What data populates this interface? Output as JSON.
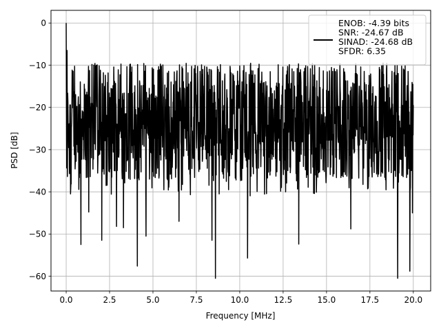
{
  "chart_data": {
    "type": "line",
    "xlabel": "Frequency [MHz]",
    "ylabel": "PSD [dB]",
    "xlim": [
      -0.875,
      21.0
    ],
    "ylim": [
      -63.5,
      3.0
    ],
    "xticks": [
      0.0,
      2.5,
      5.0,
      7.5,
      10.0,
      12.5,
      15.0,
      17.5,
      20.0
    ],
    "xtick_labels": [
      "0.0",
      "2.5",
      "5.0",
      "7.5",
      "10.0",
      "12.5",
      "15.0",
      "17.5",
      "20.0"
    ],
    "yticks": [
      0,
      -10,
      -20,
      -30,
      -40,
      -50,
      -60
    ],
    "ytick_labels": [
      "0",
      "−10",
      "−20",
      "−30",
      "−40",
      "−50",
      "−60"
    ],
    "grid": true,
    "legend_position": "top-right",
    "series": [
      {
        "name": "ENOB: -4.39 bits\nSNR: -24.67 dB\nSINAD: -24.68 dB\nSFDR: 6.35",
        "color": "#000000",
        "description": "noise-like power spectral density spanning 0 to 20 MHz, fluctuating mostly between about -10 dB and -37 dB, with a 0 dB spike at DC",
        "x_range": [
          0.0,
          20.0
        ],
        "band_upper": -9.5,
        "band_lower": -37.0,
        "peaks": [
          {
            "x": 0.0,
            "y": 0.0
          },
          {
            "x": 0.05,
            "y": -6.5
          }
        ],
        "dips": [
          {
            "x": 0.25,
            "y": -40.5
          },
          {
            "x": 0.85,
            "y": -52.5
          },
          {
            "x": 1.3,
            "y": -44.8
          },
          {
            "x": 2.05,
            "y": -51.5
          },
          {
            "x": 2.9,
            "y": -48.2
          },
          {
            "x": 3.3,
            "y": -48.5
          },
          {
            "x": 4.1,
            "y": -57.6
          },
          {
            "x": 4.6,
            "y": -50.5
          },
          {
            "x": 6.5,
            "y": -47.0
          },
          {
            "x": 8.4,
            "y": -51.5
          },
          {
            "x": 8.6,
            "y": -60.5
          },
          {
            "x": 10.45,
            "y": -55.7
          },
          {
            "x": 13.4,
            "y": -52.4
          },
          {
            "x": 16.4,
            "y": -48.8
          },
          {
            "x": 19.1,
            "y": -60.5
          },
          {
            "x": 19.8,
            "y": -58.8
          },
          {
            "x": 19.95,
            "y": -45.0
          }
        ]
      }
    ]
  }
}
